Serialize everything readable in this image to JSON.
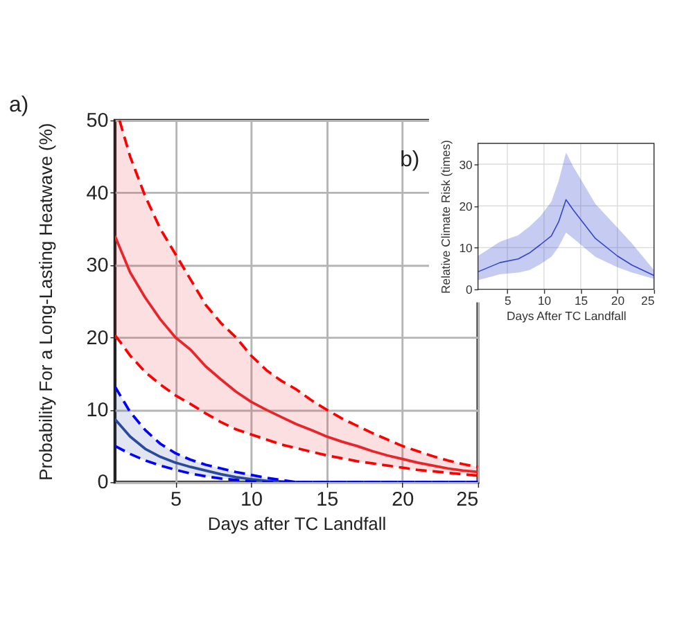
{
  "chart_data": [
    {
      "type": "line",
      "xlabel": "Days after TC Landfall",
      "ylabel": "Probability For a Long-Lasting Heatwave (%)",
      "annotations": [
        "a)"
      ],
      "xlim": [
        1,
        25
      ],
      "xticks": [
        5,
        10,
        15,
        20,
        25
      ],
      "ylim": [
        0,
        50
      ],
      "yticks": [
        0,
        10,
        20,
        30,
        40,
        50
      ],
      "grid": true,
      "series": [
        {
          "color": "#e8262a",
          "x": [
            1,
            1.3,
            2,
            3,
            4,
            5,
            6,
            7,
            8,
            9,
            10,
            11,
            12,
            13,
            14,
            15,
            16,
            17,
            18,
            19,
            20,
            21,
            22,
            23,
            24,
            25
          ],
          "values": [
            34,
            32.5,
            29,
            25.5,
            22.5,
            20,
            18.3,
            16,
            14.2,
            12.5,
            11.1,
            10,
            9,
            8,
            7.2,
            6.3,
            5.6,
            5,
            4.3,
            3.7,
            3.2,
            2.7,
            2.3,
            1.9,
            1.6,
            1.4
          ],
          "lower": [
            20.3,
            19.5,
            17.5,
            15.2,
            13.5,
            12,
            10.8,
            9.5,
            8.3,
            7.3,
            6.6,
            5.9,
            5.2,
            4.7,
            4.2,
            3.7,
            3.3,
            2.9,
            2.6,
            2.3,
            2,
            1.7,
            1.5,
            1.3,
            1.1,
            0.9
          ],
          "upper": [
            50,
            50,
            45,
            39.5,
            35,
            31.5,
            28,
            24.5,
            22,
            20,
            17.5,
            15.5,
            14,
            12.8,
            11.3,
            10,
            8.8,
            7.8,
            6.8,
            5.9,
            5,
            4.3,
            3.6,
            3,
            2.5,
            2.1
          ]
        },
        {
          "color": "#ff0000",
          "line_style": "dashed",
          "x": [
            1.3,
            2,
            3,
            4,
            5,
            6,
            7,
            8,
            9,
            10,
            11,
            12,
            13,
            14,
            15,
            16,
            17,
            18,
            19,
            20,
            21,
            22,
            23,
            24,
            25
          ],
          "values": [
            50,
            45,
            39.5,
            35,
            31.5,
            28,
            24.5,
            22,
            20,
            17.5,
            15.5,
            14,
            12.8,
            11.3,
            10,
            8.8,
            7.8,
            6.8,
            5.9,
            5,
            4.3,
            3.6,
            3,
            2.5,
            2.1
          ]
        },
        {
          "color": "#ff0000",
          "line_style": "dashed",
          "x": [
            1,
            1.3,
            2,
            3,
            4,
            5,
            6,
            7,
            8,
            9,
            10,
            11,
            12,
            13,
            14,
            15,
            16,
            17,
            18,
            19,
            20,
            21,
            22,
            23,
            24,
            25
          ],
          "values": [
            20.3,
            19.5,
            17.5,
            15.2,
            13.5,
            12,
            10.8,
            9.5,
            8.3,
            7.3,
            6.6,
            5.9,
            5.2,
            4.7,
            4.2,
            3.7,
            3.3,
            2.9,
            2.6,
            2.3,
            2,
            1.7,
            1.5,
            1.3,
            1.1,
            0.9
          ]
        },
        {
          "color": "#2a4a9e",
          "x": [
            1,
            2,
            3,
            4,
            5,
            6,
            7,
            8,
            9,
            10,
            11,
            12,
            13,
            25
          ],
          "values": [
            8.7,
            6.3,
            4.6,
            3.5,
            2.7,
            2.1,
            1.6,
            1.1,
            0.7,
            0.4,
            0.2,
            0.1,
            0,
            0
          ],
          "lower": [
            5,
            3.9,
            3,
            2.3,
            1.7,
            1.2,
            0.8,
            0.5,
            0.3,
            0.1,
            0,
            0,
            0,
            0
          ],
          "upper": [
            13.2,
            9.7,
            7.2,
            5.3,
            4,
            3.1,
            2.4,
            1.9,
            1.4,
            1,
            0.6,
            0.3,
            0,
            0
          ]
        },
        {
          "color": "#0000ff",
          "line_style": "dashed",
          "x": [
            1,
            2,
            3,
            4,
            5,
            6,
            7,
            8,
            9,
            10,
            11,
            12,
            13,
            25
          ],
          "values": [
            13.2,
            9.7,
            7.2,
            5.3,
            4,
            3.1,
            2.4,
            1.9,
            1.4,
            1,
            0.6,
            0.3,
            0,
            0
          ]
        },
        {
          "color": "#0000ff",
          "line_style": "dashed",
          "x": [
            1,
            2,
            3,
            4,
            5,
            6,
            7,
            8,
            9,
            10,
            11,
            12,
            13,
            25
          ],
          "values": [
            5,
            3.9,
            3,
            2.3,
            1.7,
            1.2,
            0.8,
            0.5,
            0.3,
            0.1,
            0,
            0,
            0,
            0
          ]
        }
      ]
    },
    {
      "type": "line",
      "xlabel": "Days After TC Landfall",
      "ylabel": "Relative Climate Risk (times)",
      "annotations": [
        "b)"
      ],
      "xlim": [
        1,
        25
      ],
      "xticks": [
        5,
        10,
        15,
        20,
        25
      ],
      "ylim": [
        0,
        35
      ],
      "yticks": [
        0,
        10,
        20,
        30
      ],
      "grid": true,
      "series": [
        {
          "color": "#3344cc",
          "x": [
            1,
            4,
            6.5,
            8,
            9.5,
            11,
            12,
            13,
            14,
            17,
            20,
            22,
            25
          ],
          "values": [
            4.2,
            6.4,
            7.3,
            8.7,
            10.7,
            12.8,
            16.2,
            21.5,
            19,
            12.2,
            8,
            5.8,
            3.3
          ],
          "lower": [
            2.2,
            3.6,
            4,
            4.6,
            6,
            7.8,
            10.2,
            13.6,
            12.2,
            7.8,
            5.3,
            4,
            2.5
          ],
          "upper": [
            8,
            11.4,
            13,
            15,
            17.5,
            21,
            26,
            32.8,
            29.4,
            20.5,
            14.8,
            11,
            4.6
          ]
        }
      ]
    }
  ]
}
